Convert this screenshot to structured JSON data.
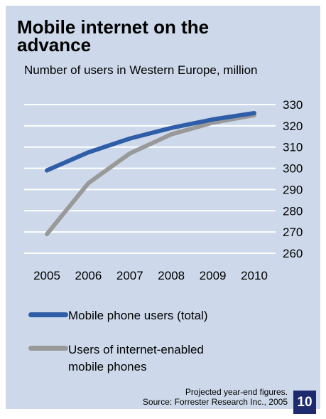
{
  "title": "Mobile internet on the advance",
  "subtitle": "Number of users in Western Europe, million",
  "note_line1": "Projected year-end figures.",
  "note_line2": "Source: Forrester Research Inc., 2005",
  "page_number": "10",
  "chart_data": {
    "type": "line",
    "title": "Mobile internet on the advance",
    "subtitle": "Number of users in Western Europe, million",
    "x": [
      "2005",
      "2006",
      "2007",
      "2008",
      "2009",
      "2010"
    ],
    "series": [
      {
        "name": "Mobile phone users (total)",
        "values": [
          299,
          307.5,
          314,
          319,
          323,
          326
        ],
        "color": "#2f5ea8"
      },
      {
        "name": "Users of internet-enabled mobile phones",
        "values": [
          269,
          293,
          307,
          316,
          321.5,
          325
        ],
        "color": "#999999"
      }
    ],
    "ylim": [
      260,
      330
    ],
    "yticks": [
      330,
      320,
      310,
      300,
      290,
      280,
      270,
      260
    ],
    "y_axis_side": "right",
    "grid": true,
    "legend_position": "bottom"
  }
}
